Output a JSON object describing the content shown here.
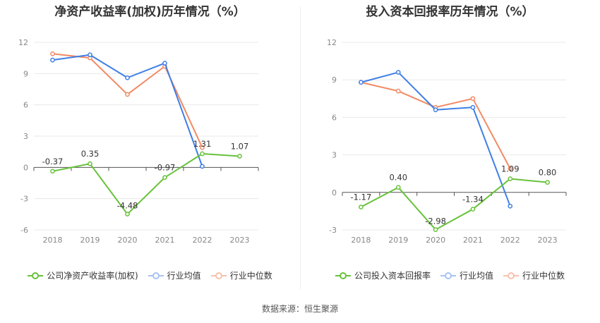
{
  "colors": {
    "company": "#67c23a",
    "industry_avg": "#3f7fe6",
    "industry_median": "#f28a64",
    "grid": "#e8e8e8",
    "axis_text": "#888888",
    "label_text": "#333333"
  },
  "footer": {
    "source": "数据来源：恒生聚源"
  },
  "chart_data": [
    {
      "type": "line",
      "title": "净资产收益率(加权)历年情况（%）",
      "categories": [
        "2018",
        "2019",
        "2020",
        "2021",
        "2022",
        "2023"
      ],
      "ylim": [
        -6,
        12
      ],
      "yticks": [
        -6,
        -3,
        0,
        3,
        6,
        9,
        12
      ],
      "ytick_labels": [
        "-6",
        "-3",
        "0",
        "3",
        "6",
        "9",
        "12"
      ],
      "series": [
        {
          "name": "公司净资产收益率(加权)",
          "color_key": "company",
          "values": [
            -0.37,
            0.35,
            -4.48,
            -0.97,
            1.31,
            1.07
          ],
          "labels": [
            "-0.37",
            "0.35",
            "-4.48",
            "-0.97",
            "1.31",
            "1.07"
          ]
        },
        {
          "name": "行业均值",
          "color_key": "industry_avg",
          "values": [
            10.3,
            10.8,
            8.6,
            10.0,
            0.1,
            null
          ]
        },
        {
          "name": "行业中位数",
          "color_key": "industry_median",
          "values": [
            10.9,
            10.5,
            7.0,
            9.7,
            1.9,
            null
          ]
        }
      ]
    },
    {
      "type": "line",
      "title": "投入资本回报率历年情况（%）",
      "categories": [
        "2018",
        "2019",
        "2020",
        "2021",
        "2022",
        "2023"
      ],
      "ylim": [
        -3,
        12
      ],
      "yticks": [
        -3,
        0,
        3,
        6,
        9,
        12
      ],
      "ytick_labels": [
        "-3",
        "0",
        "3",
        "6",
        "9",
        "12"
      ],
      "series": [
        {
          "name": "公司投入资本回报率",
          "color_key": "company",
          "values": [
            -1.17,
            0.4,
            -2.98,
            -1.34,
            1.09,
            0.8
          ],
          "labels": [
            "-1.17",
            "0.40",
            "-2.98",
            "-1.34",
            "1.09",
            "0.80"
          ]
        },
        {
          "name": "行业均值",
          "color_key": "industry_avg",
          "values": [
            8.8,
            9.6,
            6.6,
            6.8,
            -1.1,
            null
          ]
        },
        {
          "name": "行业中位数",
          "color_key": "industry_median",
          "values": [
            8.8,
            8.1,
            6.8,
            7.5,
            1.9,
            null
          ]
        }
      ]
    }
  ]
}
